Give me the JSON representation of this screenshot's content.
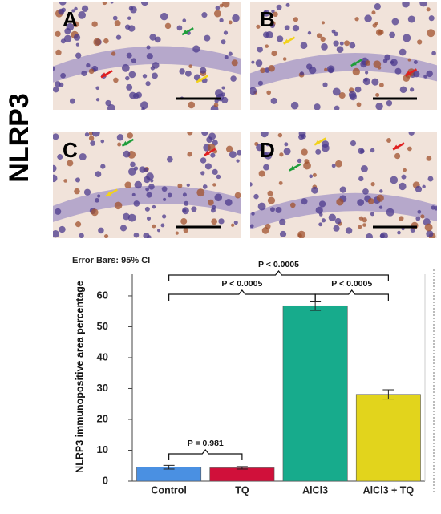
{
  "panels": [
    {
      "label": "A"
    },
    {
      "label": "B"
    },
    {
      "label": "C"
    },
    {
      "label": "D"
    }
  ],
  "stain_label": "NLRP3",
  "chart_data": {
    "type": "bar",
    "subtitle": "Error Bars: 95% CI",
    "y_label": "NLRP3 immunopositive area percentage",
    "categories": [
      "Control",
      "TQ",
      "AlCl3",
      "AlCl3 + TQ"
    ],
    "values": [
      4.5,
      4.3,
      56.8,
      28.1
    ],
    "errors": [
      0.6,
      0.4,
      1.5,
      1.5
    ],
    "colors": [
      "#4a90e2",
      "#d0103a",
      "#17ab8c",
      "#e2d41c"
    ],
    "ylim": [
      0,
      67
    ],
    "yticks": [
      0,
      10,
      20,
      30,
      40,
      50,
      60
    ],
    "annotations": [
      "P = 0.981",
      "P < 0.0005",
      "P < 0.0005",
      "P < 0.0005"
    ]
  }
}
